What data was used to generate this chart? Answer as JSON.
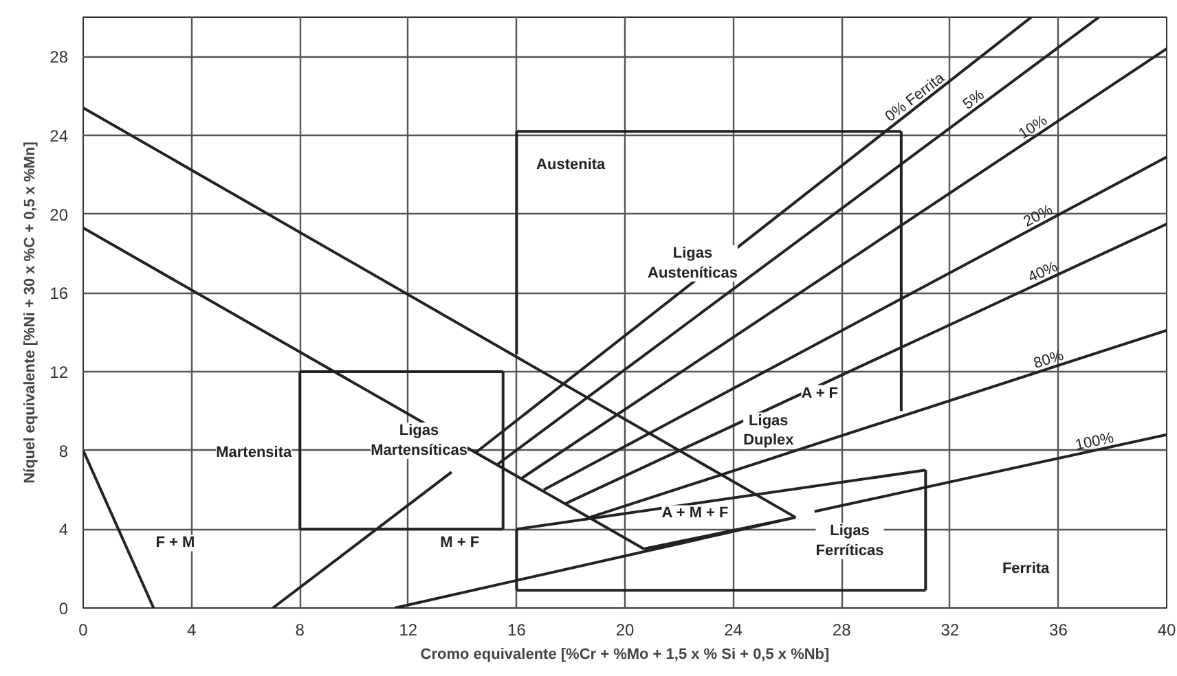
{
  "chart_data": {
    "type": "line",
    "xlabel": "Cromo equivalente [%Cr + %Mo + 1,5 x % Si + 0,5 x %Nb]",
    "ylabel": "Níquel equivalente [%Ni + 30 x %C + 0,5 x %Mn]",
    "xlim": [
      0,
      40
    ],
    "ylim": [
      0,
      30
    ],
    "xticks": [
      0,
      4,
      8,
      12,
      16,
      20,
      24,
      28,
      32,
      36,
      40
    ],
    "yticks": [
      0,
      4,
      8,
      12,
      16,
      20,
      24,
      28
    ],
    "grid": true,
    "marker": "none",
    "line_style": "solid",
    "series": [
      {
        "color": "#222222",
        "x": [
          0,
          26.3
        ],
        "values": [
          25.4,
          4.6
        ]
      },
      {
        "color": "#222222",
        "x": [
          0,
          20.7
        ],
        "values": [
          19.3,
          3.0
        ]
      },
      {
        "color": "#222222",
        "x": [
          20.7,
          26.3
        ],
        "values": [
          3.0,
          4.6
        ]
      },
      {
        "color": "#222222",
        "x": [
          11.5,
          26.3
        ],
        "values": [
          0,
          4.6
        ]
      },
      {
        "color": "#222222",
        "x": [
          0,
          2.6
        ],
        "values": [
          8,
          0
        ]
      },
      {
        "color": "#222222",
        "x": [
          7,
          13.6
        ],
        "values": [
          0,
          6.9
        ]
      },
      {
        "color": "#222222",
        "x": [
          8,
          15.5
        ],
        "values": [
          12,
          12
        ]
      },
      {
        "color": "#222222",
        "x": [
          8,
          15.5
        ],
        "values": [
          4,
          4
        ]
      },
      {
        "color": "#222222",
        "x": [
          8,
          8
        ],
        "values": [
          4,
          12
        ]
      },
      {
        "color": "#222222",
        "x": [
          15.5,
          15.5
        ],
        "values": [
          4,
          12
        ]
      },
      {
        "color": "#222222",
        "x": [
          16,
          30.2
        ],
        "values": [
          24.2,
          24.2
        ]
      },
      {
        "color": "#222222",
        "x": [
          16,
          16
        ],
        "values": [
          12.9,
          24.2
        ]
      },
      {
        "color": "#222222",
        "x": [
          30.2,
          30.2
        ],
        "values": [
          10.0,
          24.2
        ]
      },
      {
        "color": "#222222",
        "x": [
          16,
          31.1
        ],
        "values": [
          4,
          7.0
        ]
      },
      {
        "color": "#222222",
        "x": [
          16,
          31.1
        ],
        "values": [
          0.9,
          0.9
        ]
      },
      {
        "color": "#222222",
        "x": [
          16,
          16
        ],
        "values": [
          0.9,
          4
        ]
      },
      {
        "color": "#222222",
        "x": [
          31.1,
          31.1
        ],
        "values": [
          0.9,
          7.0
        ]
      },
      {
        "name": "0% Ferrita",
        "color": "#222222",
        "x": [
          14.5,
          35.0
        ],
        "values": [
          7.9,
          30
        ]
      },
      {
        "name": "5%",
        "color": "#222222",
        "x": [
          15.3,
          37.5
        ],
        "values": [
          7.3,
          30
        ]
      },
      {
        "name": "10%",
        "color": "#222222",
        "x": [
          16.2,
          40
        ],
        "values": [
          6.6,
          28.4
        ]
      },
      {
        "name": "20%",
        "color": "#222222",
        "x": [
          17.0,
          40
        ],
        "values": [
          6.0,
          22.9
        ]
      },
      {
        "name": "40%",
        "color": "#222222",
        "x": [
          17.8,
          40
        ],
        "values": [
          5.3,
          19.5
        ]
      },
      {
        "name": "80%",
        "color": "#222222",
        "x": [
          18.7,
          40
        ],
        "values": [
          4.6,
          14.1
        ]
      },
      {
        "name": "100%",
        "color": "#222222",
        "x": [
          27.0,
          40
        ],
        "values": [
          4.9,
          8.8
        ]
      }
    ],
    "annotations": [
      "Austenita",
      "Ligas\nAusteníticas",
      "Martensita",
      "Ligas\nMartensíticas",
      "F + M",
      "M + F",
      "A + F",
      "Ligas\nDuplex",
      "A + M + F",
      "Ligas\nFerríticas",
      "Ferrita"
    ]
  }
}
